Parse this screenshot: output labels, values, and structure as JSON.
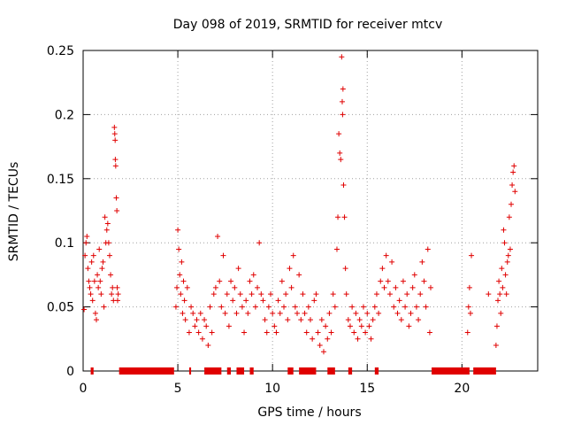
{
  "chart_data": {
    "type": "scatter",
    "title": "Day 098 of 2019, SRMTID for receiver mtcv",
    "xlabel": "GPS time / hours",
    "ylabel": "SRMTID / TECUs",
    "xlim": [
      0,
      24
    ],
    "ylim": [
      0,
      0.25
    ],
    "x_ticks": [
      "0",
      "5",
      "10",
      "15",
      "20"
    ],
    "x_tick_values": [
      0,
      5,
      10,
      15,
      20
    ],
    "y_ticks": [
      "0",
      "0.05",
      "0.1",
      "0.15",
      "0.2",
      "0.25"
    ],
    "y_tick_values": [
      0,
      0.05,
      0.1,
      0.15,
      0.2,
      0.25
    ],
    "grid": true,
    "marker": "+",
    "color": "#e00000",
    "series": [
      {
        "name": "SRMTID",
        "points": [
          [
            0.05,
            0.048
          ],
          [
            0.1,
            0.09
          ],
          [
            0.15,
            0.1
          ],
          [
            0.2,
            0.105
          ],
          [
            0.25,
            0.08
          ],
          [
            0.3,
            0.07
          ],
          [
            0.35,
            0.065
          ],
          [
            0.4,
            0.06
          ],
          [
            0.45,
            0.085
          ],
          [
            0.5,
            0.055
          ],
          [
            0.55,
            0.09
          ],
          [
            0.6,
            0.07
          ],
          [
            0.65,
            0.045
          ],
          [
            0.7,
            0.04
          ],
          [
            0.75,
            0.075
          ],
          [
            0.8,
            0.065
          ],
          [
            0.85,
            0.095
          ],
          [
            0.9,
            0.07
          ],
          [
            0.95,
            0.06
          ],
          [
            1.0,
            0.08
          ],
          [
            1.05,
            0.085
          ],
          [
            1.1,
            0.05
          ],
          [
            1.15,
            0.12
          ],
          [
            1.2,
            0.1
          ],
          [
            1.25,
            0.11
          ],
          [
            1.3,
            0.115
          ],
          [
            1.35,
            0.1
          ],
          [
            1.4,
            0.09
          ],
          [
            1.45,
            0.075
          ],
          [
            1.5,
            0.06
          ],
          [
            1.55,
            0.065
          ],
          [
            1.6,
            0.055
          ],
          [
            1.65,
            0.19
          ],
          [
            1.67,
            0.185
          ],
          [
            1.69,
            0.18
          ],
          [
            1.7,
            0.165
          ],
          [
            1.72,
            0.16
          ],
          [
            1.75,
            0.135
          ],
          [
            1.78,
            0.125
          ],
          [
            1.8,
            0.065
          ],
          [
            1.82,
            0.055
          ],
          [
            1.85,
            0.06
          ],
          [
            4.9,
            0.05
          ],
          [
            4.95,
            0.065
          ],
          [
            5.0,
            0.11
          ],
          [
            5.05,
            0.095
          ],
          [
            5.1,
            0.075
          ],
          [
            5.15,
            0.06
          ],
          [
            5.2,
            0.085
          ],
          [
            5.25,
            0.045
          ],
          [
            5.3,
            0.07
          ],
          [
            5.35,
            0.055
          ],
          [
            5.4,
            0.04
          ],
          [
            5.5,
            0.065
          ],
          [
            5.6,
            0.03
          ],
          [
            5.7,
            0.05
          ],
          [
            5.8,
            0.045
          ],
          [
            5.9,
            0.035
          ],
          [
            6.0,
            0.04
          ],
          [
            6.1,
            0.03
          ],
          [
            6.2,
            0.045
          ],
          [
            6.3,
            0.025
          ],
          [
            6.4,
            0.04
          ],
          [
            6.5,
            0.035
          ],
          [
            6.6,
            0.02
          ],
          [
            6.7,
            0.05
          ],
          [
            6.8,
            0.03
          ],
          [
            6.9,
            0.06
          ],
          [
            7.0,
            0.065
          ],
          [
            7.1,
            0.105
          ],
          [
            7.2,
            0.07
          ],
          [
            7.3,
            0.05
          ],
          [
            7.4,
            0.09
          ],
          [
            7.5,
            0.045
          ],
          [
            7.6,
            0.06
          ],
          [
            7.7,
            0.035
          ],
          [
            7.8,
            0.07
          ],
          [
            7.9,
            0.055
          ],
          [
            8.0,
            0.065
          ],
          [
            8.1,
            0.045
          ],
          [
            8.2,
            0.08
          ],
          [
            8.3,
            0.06
          ],
          [
            8.4,
            0.05
          ],
          [
            8.5,
            0.03
          ],
          [
            8.6,
            0.055
          ],
          [
            8.7,
            0.045
          ],
          [
            8.8,
            0.07
          ],
          [
            8.9,
            0.06
          ],
          [
            9.0,
            0.075
          ],
          [
            9.1,
            0.05
          ],
          [
            9.2,
            0.065
          ],
          [
            9.3,
            0.1
          ],
          [
            9.4,
            0.06
          ],
          [
            9.5,
            0.055
          ],
          [
            9.6,
            0.04
          ],
          [
            9.7,
            0.03
          ],
          [
            9.8,
            0.05
          ],
          [
            9.9,
            0.06
          ],
          [
            10.0,
            0.045
          ],
          [
            10.1,
            0.035
          ],
          [
            10.2,
            0.03
          ],
          [
            10.3,
            0.055
          ],
          [
            10.4,
            0.045
          ],
          [
            10.5,
            0.07
          ],
          [
            10.6,
            0.05
          ],
          [
            10.7,
            0.06
          ],
          [
            10.8,
            0.04
          ],
          [
            10.9,
            0.08
          ],
          [
            11.0,
            0.065
          ],
          [
            11.1,
            0.09
          ],
          [
            11.2,
            0.05
          ],
          [
            11.3,
            0.045
          ],
          [
            11.4,
            0.075
          ],
          [
            11.5,
            0.04
          ],
          [
            11.6,
            0.06
          ],
          [
            11.7,
            0.045
          ],
          [
            11.8,
            0.03
          ],
          [
            11.9,
            0.05
          ],
          [
            12.0,
            0.04
          ],
          [
            12.1,
            0.025
          ],
          [
            12.2,
            0.055
          ],
          [
            12.3,
            0.06
          ],
          [
            12.4,
            0.03
          ],
          [
            12.5,
            0.02
          ],
          [
            12.6,
            0.04
          ],
          [
            12.7,
            0.015
          ],
          [
            12.8,
            0.035
          ],
          [
            12.9,
            0.025
          ],
          [
            13.0,
            0.045
          ],
          [
            13.1,
            0.03
          ],
          [
            13.2,
            0.06
          ],
          [
            13.3,
            0.05
          ],
          [
            13.4,
            0.095
          ],
          [
            13.45,
            0.12
          ],
          [
            13.5,
            0.185
          ],
          [
            13.55,
            0.17
          ],
          [
            13.6,
            0.165
          ],
          [
            13.65,
            0.245
          ],
          [
            13.68,
            0.21
          ],
          [
            13.7,
            0.2
          ],
          [
            13.72,
            0.22
          ],
          [
            13.75,
            0.145
          ],
          [
            13.8,
            0.12
          ],
          [
            13.85,
            0.08
          ],
          [
            13.9,
            0.06
          ],
          [
            14.0,
            0.04
          ],
          [
            14.1,
            0.035
          ],
          [
            14.2,
            0.05
          ],
          [
            14.3,
            0.03
          ],
          [
            14.4,
            0.045
          ],
          [
            14.5,
            0.025
          ],
          [
            14.6,
            0.04
          ],
          [
            14.7,
            0.035
          ],
          [
            14.8,
            0.05
          ],
          [
            14.9,
            0.03
          ],
          [
            15.0,
            0.045
          ],
          [
            15.1,
            0.035
          ],
          [
            15.2,
            0.025
          ],
          [
            15.3,
            0.04
          ],
          [
            15.4,
            0.05
          ],
          [
            15.5,
            0.06
          ],
          [
            15.6,
            0.045
          ],
          [
            15.7,
            0.07
          ],
          [
            15.8,
            0.08
          ],
          [
            15.9,
            0.065
          ],
          [
            16.0,
            0.09
          ],
          [
            16.1,
            0.07
          ],
          [
            16.2,
            0.06
          ],
          [
            16.3,
            0.085
          ],
          [
            16.4,
            0.05
          ],
          [
            16.5,
            0.065
          ],
          [
            16.6,
            0.045
          ],
          [
            16.7,
            0.055
          ],
          [
            16.8,
            0.04
          ],
          [
            16.9,
            0.07
          ],
          [
            17.0,
            0.05
          ],
          [
            17.1,
            0.06
          ],
          [
            17.2,
            0.035
          ],
          [
            17.3,
            0.045
          ],
          [
            17.4,
            0.065
          ],
          [
            17.5,
            0.075
          ],
          [
            17.6,
            0.05
          ],
          [
            17.7,
            0.04
          ],
          [
            17.8,
            0.06
          ],
          [
            17.9,
            0.085
          ],
          [
            18.0,
            0.07
          ],
          [
            18.1,
            0.05
          ],
          [
            18.2,
            0.095
          ],
          [
            18.3,
            0.03
          ],
          [
            18.35,
            0.065
          ],
          [
            20.3,
            0.03
          ],
          [
            20.35,
            0.05
          ],
          [
            20.4,
            0.065
          ],
          [
            20.45,
            0.045
          ],
          [
            20.5,
            0.09
          ],
          [
            21.4,
            0.06
          ],
          [
            21.8,
            0.02
          ],
          [
            21.85,
            0.035
          ],
          [
            21.9,
            0.055
          ],
          [
            21.95,
            0.07
          ],
          [
            22.0,
            0.06
          ],
          [
            22.05,
            0.045
          ],
          [
            22.1,
            0.08
          ],
          [
            22.15,
            0.065
          ],
          [
            22.2,
            0.11
          ],
          [
            22.25,
            0.1
          ],
          [
            22.3,
            0.075
          ],
          [
            22.35,
            0.06
          ],
          [
            22.4,
            0.085
          ],
          [
            22.45,
            0.09
          ],
          [
            22.5,
            0.12
          ],
          [
            22.55,
            0.095
          ],
          [
            22.6,
            0.13
          ],
          [
            22.65,
            0.145
          ],
          [
            22.7,
            0.155
          ],
          [
            22.75,
            0.16
          ],
          [
            22.8,
            0.14
          ]
        ]
      }
    ],
    "zero_bands": [
      [
        0.4,
        0.55
      ],
      [
        1.9,
        4.8
      ],
      [
        5.6,
        5.7
      ],
      [
        6.4,
        7.3
      ],
      [
        7.6,
        7.8
      ],
      [
        8.1,
        8.5
      ],
      [
        8.8,
        9.0
      ],
      [
        10.8,
        11.1
      ],
      [
        11.4,
        12.3
      ],
      [
        12.9,
        13.3
      ],
      [
        14.0,
        14.2
      ],
      [
        15.4,
        15.6
      ],
      [
        18.4,
        20.4
      ],
      [
        20.6,
        21.8
      ]
    ]
  }
}
